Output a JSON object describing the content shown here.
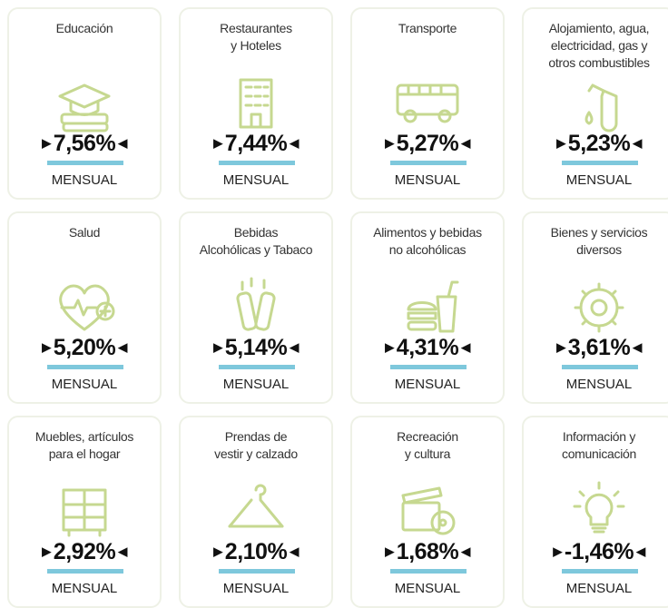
{
  "cards": [
    {
      "title": [
        "Educación"
      ],
      "value": "7,56%",
      "period": "MENSUAL"
    },
    {
      "title": [
        "Restaurantes",
        "y Hoteles"
      ],
      "value": "7,44%",
      "period": "MENSUAL"
    },
    {
      "title": [
        "Transporte"
      ],
      "value": "5,27%",
      "period": "MENSUAL"
    },
    {
      "title": [
        "Alojamiento, agua,",
        "electricidad, gas y",
        "otros combustibles"
      ],
      "value": "5,23%",
      "period": "MENSUAL"
    },
    {
      "title": [
        "Salud"
      ],
      "value": "5,20%",
      "period": "MENSUAL"
    },
    {
      "title": [
        "Bebidas",
        "Alcohólicas y Tabaco"
      ],
      "value": "5,14%",
      "period": "MENSUAL"
    },
    {
      "title": [
        "Alimentos y bebidas",
        "no alcohólicas"
      ],
      "value": "4,31%",
      "period": "MENSUAL"
    },
    {
      "title": [
        "Bienes y servicios",
        "diversos"
      ],
      "value": "3,61%",
      "period": "MENSUAL"
    },
    {
      "title": [
        "Muebles, artículos",
        "para el hogar"
      ],
      "value": "2,92%",
      "period": "MENSUAL"
    },
    {
      "title": [
        "Prendas de",
        "vestir y calzado"
      ],
      "value": "2,10%",
      "period": "MENSUAL"
    },
    {
      "title": [
        "Recreación",
        "y cultura"
      ],
      "value": "1,68%",
      "period": "MENSUAL"
    },
    {
      "title": [
        "Información y",
        "comunicación"
      ],
      "value": "-1,46%",
      "period": "MENSUAL"
    }
  ]
}
